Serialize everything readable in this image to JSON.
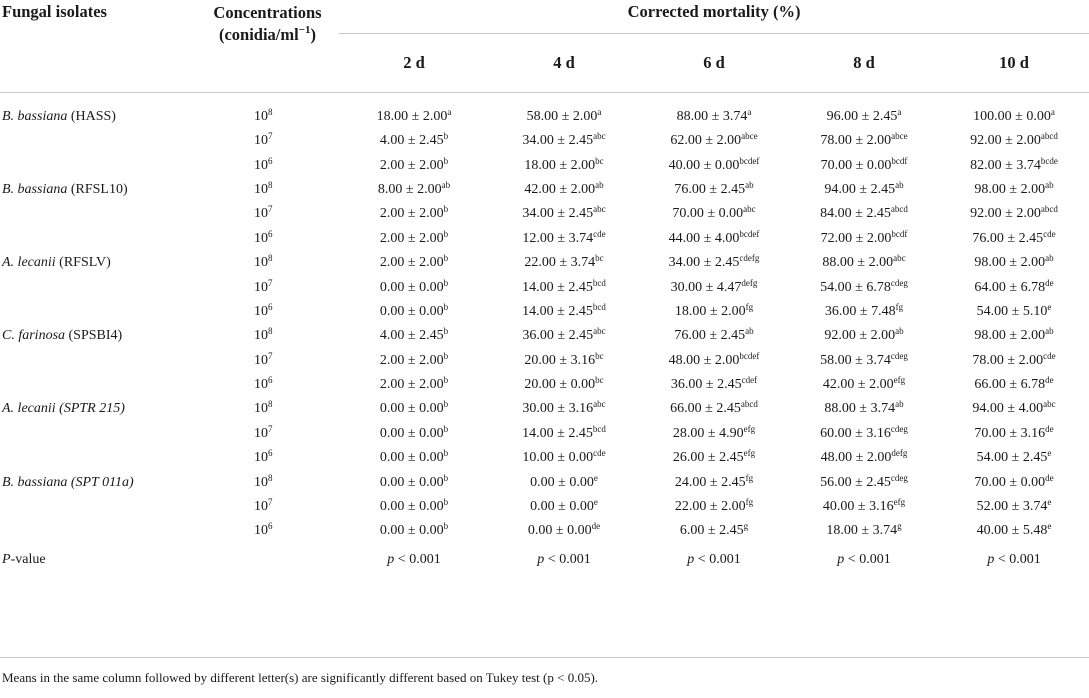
{
  "header": {
    "fungal_isolates": "Fungal isolates",
    "concentrations_line1": "Concentrations",
    "concentrations_line2": "(conidia/ml",
    "concentrations_exp": "−1",
    "concentrations_close": ")",
    "corrected_mortality": "Corrected mortality (%)",
    "days": [
      "2 d",
      "4 d",
      "6 d",
      "8 d",
      "10 d"
    ]
  },
  "rows": [
    {
      "isolate_genus": "B. bassiana",
      "isolate_strain": " (HASS)",
      "strain_italic": false,
      "conc_base": "10",
      "conc_exp": "8",
      "cells": [
        [
          "18.00 ± 2.00",
          "a"
        ],
        [
          "58.00 ± 2.00",
          "a"
        ],
        [
          "88.00 ± 3.74",
          "a"
        ],
        [
          "96.00 ± 2.45",
          "a"
        ],
        [
          "100.00 ± 0.00",
          "a"
        ]
      ]
    },
    {
      "isolate_genus": "",
      "isolate_strain": "",
      "strain_italic": false,
      "conc_base": "10",
      "conc_exp": "7",
      "cells": [
        [
          "4.00 ± 2.45",
          "b"
        ],
        [
          "34.00 ± 2.45",
          "abc"
        ],
        [
          "62.00 ± 2.00",
          "abce"
        ],
        [
          "78.00 ± 2.00",
          "abce"
        ],
        [
          "92.00 ± 2.00",
          "abcd"
        ]
      ]
    },
    {
      "isolate_genus": "",
      "isolate_strain": "",
      "strain_italic": false,
      "conc_base": "10",
      "conc_exp": "6",
      "cells": [
        [
          "2.00 ± 2.00",
          "b"
        ],
        [
          "18.00 ± 2.00",
          "bc"
        ],
        [
          "40.00 ± 0.00",
          "bcdef"
        ],
        [
          "70.00 ± 0.00",
          "bcdf"
        ],
        [
          "82.00 ± 3.74",
          "bcde"
        ]
      ]
    },
    {
      "isolate_genus": "B. bassiana",
      "isolate_strain": " (RFSL10)",
      "strain_italic": false,
      "conc_base": "10",
      "conc_exp": "8",
      "cells": [
        [
          "8.00 ± 2.00",
          "ab"
        ],
        [
          "42.00 ± 2.00",
          "ab"
        ],
        [
          "76.00 ± 2.45",
          "ab"
        ],
        [
          "94.00 ± 2.45",
          "ab"
        ],
        [
          "98.00 ± 2.00",
          "ab"
        ]
      ]
    },
    {
      "isolate_genus": "",
      "isolate_strain": "",
      "strain_italic": false,
      "conc_base": "10",
      "conc_exp": "7",
      "cells": [
        [
          "2.00 ± 2.00",
          "b"
        ],
        [
          "34.00 ± 2.45",
          "abc"
        ],
        [
          "70.00 ± 0.00",
          "abc"
        ],
        [
          "84.00 ± 2.45",
          "abcd"
        ],
        [
          "92.00 ± 2.00",
          "abcd"
        ]
      ]
    },
    {
      "isolate_genus": "",
      "isolate_strain": "",
      "strain_italic": false,
      "conc_base": "10",
      "conc_exp": "6",
      "cells": [
        [
          "2.00 ± 2.00",
          "b"
        ],
        [
          "12.00 ± 3.74",
          "cde"
        ],
        [
          "44.00 ± 4.00",
          "bcdef"
        ],
        [
          "72.00 ± 2.00",
          "bcdf"
        ],
        [
          "76.00 ± 2.45",
          "cde"
        ]
      ]
    },
    {
      "isolate_genus": "A. lecanii",
      "isolate_strain": " (RFSLV)",
      "strain_italic": false,
      "conc_base": "10",
      "conc_exp": "8",
      "cells": [
        [
          "2.00 ± 2.00",
          "b"
        ],
        [
          "22.00 ± 3.74",
          "bc"
        ],
        [
          "34.00 ± 2.45",
          "cdefg"
        ],
        [
          "88.00 ± 2.00",
          "abc"
        ],
        [
          "98.00 ± 2.00",
          "ab"
        ]
      ]
    },
    {
      "isolate_genus": "",
      "isolate_strain": "",
      "strain_italic": false,
      "conc_base": "10",
      "conc_exp": "7",
      "cells": [
        [
          "0.00 ± 0.00",
          "b"
        ],
        [
          "14.00 ± 2.45",
          "bcd"
        ],
        [
          "30.00 ± 4.47",
          "defg"
        ],
        [
          "54.00 ± 6.78",
          "cdeg"
        ],
        [
          "64.00 ± 6.78",
          "de"
        ]
      ]
    },
    {
      "isolate_genus": "",
      "isolate_strain": "",
      "strain_italic": false,
      "conc_base": "10",
      "conc_exp": "6",
      "cells": [
        [
          "0.00 ± 0.00",
          "b"
        ],
        [
          "14.00 ± 2.45",
          "bcd"
        ],
        [
          "18.00 ± 2.00",
          "fg"
        ],
        [
          "36.00 ± 7.48",
          "fg"
        ],
        [
          "54.00 ± 5.10",
          "e"
        ]
      ]
    },
    {
      "isolate_genus": "C. farinosa",
      "isolate_strain": " (SPSBI4)",
      "strain_italic": false,
      "conc_base": "10",
      "conc_exp": "8",
      "cells": [
        [
          "4.00 ± 2.45",
          "b"
        ],
        [
          "36.00 ± 2.45",
          "abc"
        ],
        [
          "76.00 ± 2.45",
          "ab"
        ],
        [
          "92.00 ± 2.00",
          "ab"
        ],
        [
          "98.00 ± 2.00",
          "ab"
        ]
      ]
    },
    {
      "isolate_genus": "",
      "isolate_strain": "",
      "strain_italic": false,
      "conc_base": "10",
      "conc_exp": "7",
      "cells": [
        [
          "2.00 ± 2.00",
          "b"
        ],
        [
          "20.00 ± 3.16",
          "bc"
        ],
        [
          "48.00 ± 2.00",
          "bcdef"
        ],
        [
          "58.00 ± 3.74",
          "cdeg"
        ],
        [
          "78.00 ± 2.00",
          "cde"
        ]
      ]
    },
    {
      "isolate_genus": "",
      "isolate_strain": "",
      "strain_italic": false,
      "conc_base": "10",
      "conc_exp": "6",
      "cells": [
        [
          "2.00 ± 2.00",
          "b"
        ],
        [
          "20.00 ± 0.00",
          "bc"
        ],
        [
          "36.00 ± 2.45",
          "cdef"
        ],
        [
          "42.00 ± 2.00",
          "efg"
        ],
        [
          "66.00 ± 6.78",
          "de"
        ]
      ]
    },
    {
      "isolate_genus": "A. lecanii",
      "isolate_strain": " (SPTR 215)",
      "strain_italic": true,
      "conc_base": "10",
      "conc_exp": "8",
      "cells": [
        [
          "0.00 ± 0.00",
          "b"
        ],
        [
          "30.00 ± 3.16",
          "abc"
        ],
        [
          "66.00 ± 2.45",
          "abcd"
        ],
        [
          "88.00 ± 3.74",
          "ab"
        ],
        [
          "94.00 ± 4.00",
          "abc"
        ]
      ]
    },
    {
      "isolate_genus": "",
      "isolate_strain": "",
      "strain_italic": false,
      "conc_base": "10",
      "conc_exp": "7",
      "cells": [
        [
          "0.00 ± 0.00",
          "b"
        ],
        [
          "14.00 ± 2.45",
          "bcd"
        ],
        [
          "28.00 ± 4.90",
          "efg"
        ],
        [
          "60.00 ± 3.16",
          "cdeg"
        ],
        [
          "70.00 ± 3.16",
          "de"
        ]
      ]
    },
    {
      "isolate_genus": "",
      "isolate_strain": "",
      "strain_italic": false,
      "conc_base": "10",
      "conc_exp": "6",
      "cells": [
        [
          "0.00 ± 0.00",
          "b"
        ],
        [
          "10.00 ± 0.00",
          "cde"
        ],
        [
          "26.00 ± 2.45",
          "efg"
        ],
        [
          "48.00 ± 2.00",
          "defg"
        ],
        [
          "54.00 ± 2.45",
          "e"
        ]
      ]
    },
    {
      "isolate_genus": "B. bassiana",
      "isolate_strain": " (SPT 011a)",
      "strain_italic": true,
      "conc_base": "10",
      "conc_exp": "8",
      "cells": [
        [
          "0.00 ± 0.00",
          "b"
        ],
        [
          "0.00 ± 0.00",
          "e"
        ],
        [
          "24.00 ± 2.45",
          "fg"
        ],
        [
          "56.00 ± 2.45",
          "cdeg"
        ],
        [
          "70.00 ± 0.00",
          "de"
        ]
      ]
    },
    {
      "isolate_genus": "",
      "isolate_strain": "",
      "strain_italic": false,
      "conc_base": "10",
      "conc_exp": "7",
      "cells": [
        [
          "0.00 ± 0.00",
          "b"
        ],
        [
          "0.00 ± 0.00",
          "e"
        ],
        [
          "22.00 ± 2.00",
          "fg"
        ],
        [
          "40.00 ± 3.16",
          "efg"
        ],
        [
          "52.00 ± 3.74",
          "e"
        ]
      ]
    },
    {
      "isolate_genus": "",
      "isolate_strain": "",
      "strain_italic": false,
      "conc_base": "10",
      "conc_exp": "6",
      "cells": [
        [
          "0.00 ± 0.00",
          "b"
        ],
        [
          "0.00 ± 0.00",
          "de"
        ],
        [
          "6.00 ± 2.45",
          "g"
        ],
        [
          "18.00 ± 3.74",
          "g"
        ],
        [
          "40.00 ± 5.48",
          "e"
        ]
      ]
    }
  ],
  "pvalue": {
    "label_italic": "P",
    "label_rest": "-value",
    "p_italic": "p",
    "p_rest": " < 0.001",
    "count": 5
  },
  "footnote": "Means in the same column followed by different letter(s) are significantly different based on Tukey test (p < 0.05)."
}
